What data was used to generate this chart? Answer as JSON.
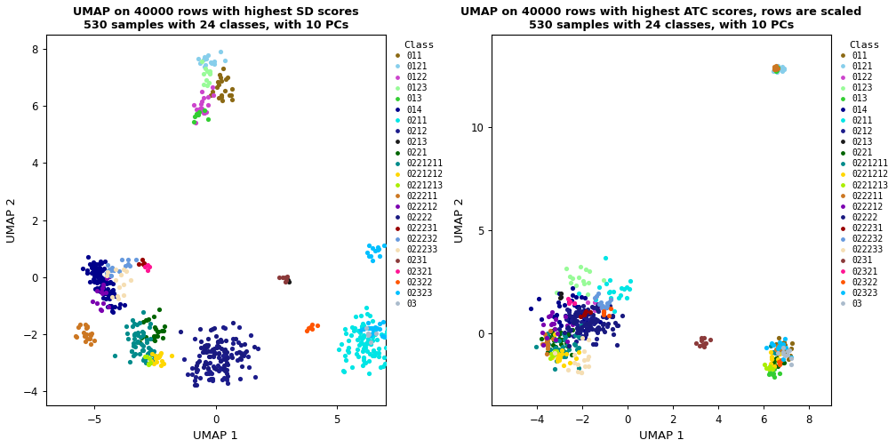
{
  "title1": "UMAP on 40000 rows with highest SD scores\n530 samples with 24 classes, with 10 PCs",
  "title2": "UMAP on 40000 rows with highest ATC scores, rows are scaled\n530 samples with 24 classes, with 10 PCs",
  "xlabel": "UMAP 1",
  "ylabel": "UMAP 2",
  "classes": [
    "011",
    "0121",
    "0122",
    "0123",
    "013",
    "014",
    "0211",
    "0212",
    "0213",
    "0221",
    "0221211",
    "0221212",
    "0221213",
    "022211",
    "022212",
    "02222",
    "022231",
    "022232",
    "022233",
    "0231",
    "02321",
    "02322",
    "02323",
    "03"
  ],
  "colors": [
    "#8B6914",
    "#87CEEB",
    "#CC44CC",
    "#98FB98",
    "#32CD32",
    "#00008B",
    "#00E5E5",
    "#1C1C8B",
    "#1A1A1A",
    "#006400",
    "#008B8B",
    "#FFD700",
    "#AAEE00",
    "#CC7722",
    "#7B00B0",
    "#191980",
    "#990000",
    "#6699DD",
    "#F5DEB3",
    "#8B3A3A",
    "#FF1493",
    "#FF5500",
    "#00BFFF",
    "#AABBCC"
  ],
  "plot1_xlim": [
    -7,
    7
  ],
  "plot1_ylim": [
    -4.5,
    8.5
  ],
  "plot1_xticks": [
    -5,
    0,
    5
  ],
  "plot1_yticks": [
    -4,
    -2,
    0,
    2,
    4,
    6,
    8
  ],
  "plot2_xlim": [
    -6,
    9
  ],
  "plot2_ylim": [
    -3.5,
    14.5
  ],
  "plot2_xticks": [
    -4,
    -2,
    0,
    2,
    4,
    6,
    8
  ],
  "plot2_yticks": [
    0,
    5,
    10
  ]
}
